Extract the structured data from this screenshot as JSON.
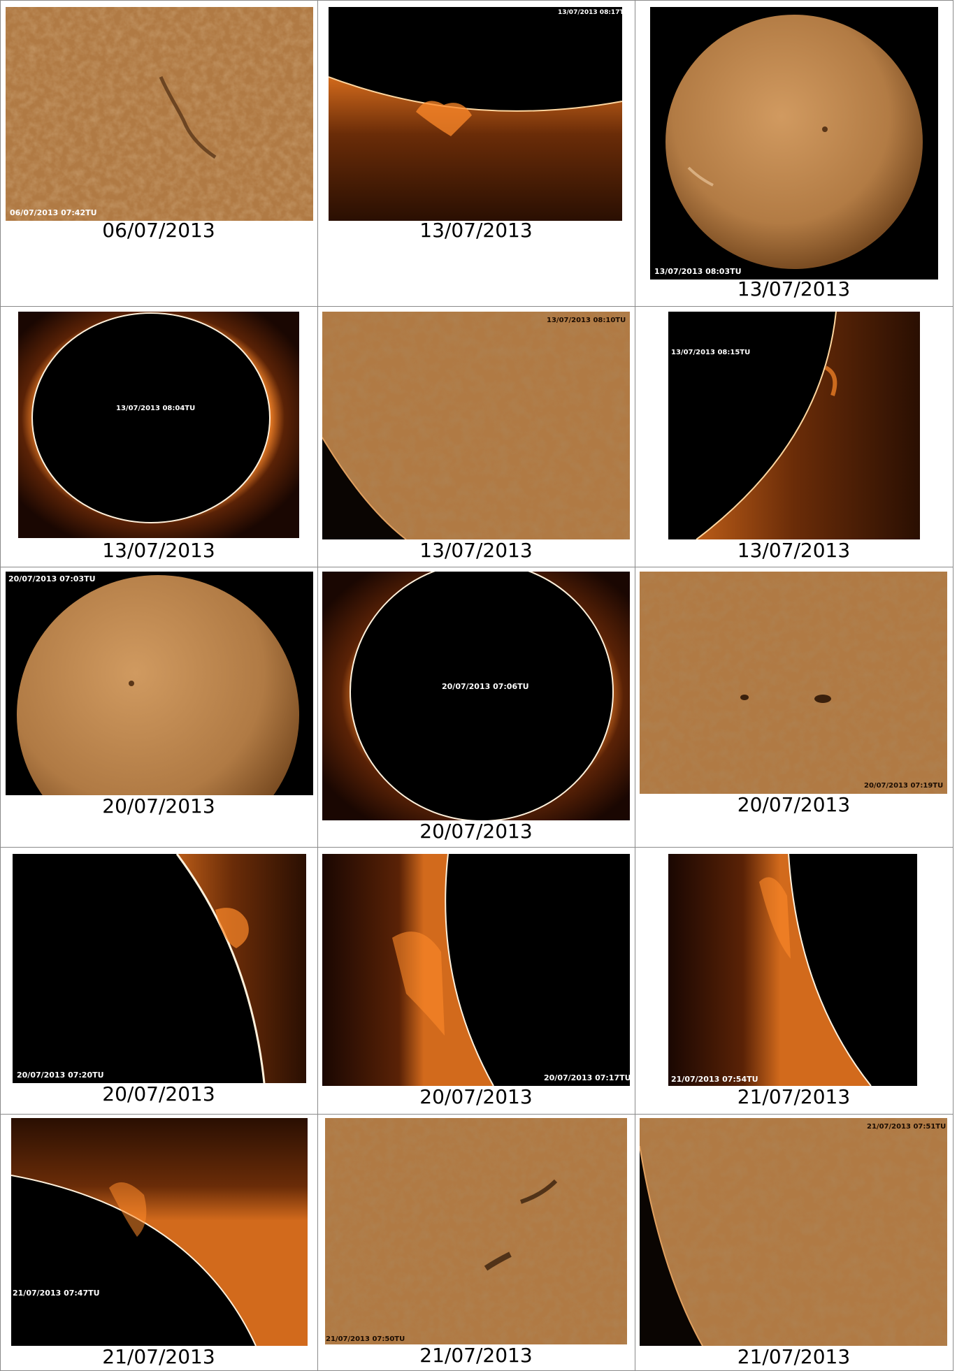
{
  "rows": [
    [
      {
        "caption": "06/07/2013",
        "stamp": "06/07/2013 07:42TU"
      },
      {
        "caption": "13/07/2013",
        "stamp": "13/07/2013 08:17TU"
      },
      {
        "caption": "13/07/2013",
        "stamp": "13/07/2013 08:03TU"
      }
    ],
    [
      {
        "caption": "13/07/2013",
        "stamp": "13/07/2013 08:04TU"
      },
      {
        "caption": "13/07/2013",
        "stamp": "13/07/2013 08:10TU"
      },
      {
        "caption": "13/07/2013",
        "stamp": "13/07/2013 08:15TU"
      }
    ],
    [
      {
        "caption": "20/07/2013",
        "stamp": "20/07/2013 07:03TU"
      },
      {
        "caption": "20/07/2013",
        "stamp": "20/07/2013 07:06TU"
      },
      {
        "caption": "20/07/2013",
        "stamp": "20/07/2013 07:19TU"
      }
    ],
    [
      {
        "caption": "20/07/2013",
        "stamp": "20/07/2013 07:20TU"
      },
      {
        "caption": "20/07/2013",
        "stamp": "20/07/2013 07:17TU"
      },
      {
        "caption": "21/07/2013",
        "stamp": "21/07/2013 07:54TU"
      }
    ],
    [
      {
        "caption": "21/07/2013",
        "stamp": "21/07/2013 07:47TU"
      },
      {
        "caption": "21/07/2013",
        "stamp": "21/07/2013 07:50TU"
      },
      {
        "caption": "21/07/2013",
        "stamp": "21/07/2013 07:51TU"
      }
    ]
  ],
  "colors": {
    "surface": "#b07a44",
    "surface_dark": "#8a5a2c",
    "limb_glow": "#ff8a2a",
    "sky": "#000000",
    "grid_line": "#8a8a8a"
  }
}
